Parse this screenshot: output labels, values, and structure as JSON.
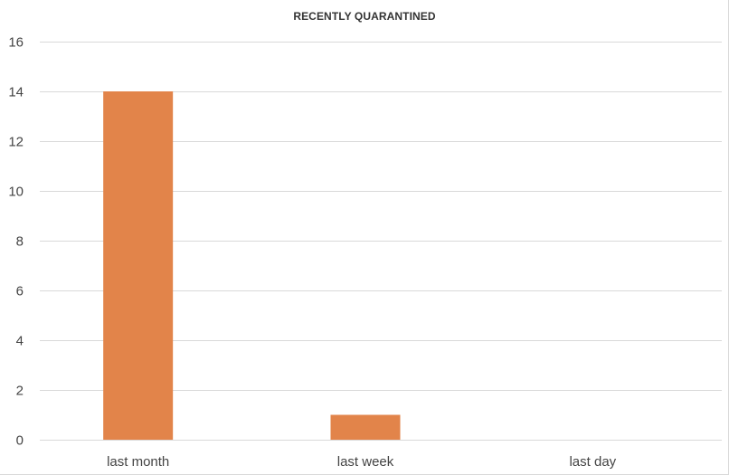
{
  "chart_data": {
    "type": "bar",
    "title": "RECENTLY QUARANTINED",
    "xlabel": "",
    "ylabel": "",
    "categories": [
      "last month",
      "last week",
      "last day"
    ],
    "values": [
      14,
      1,
      0
    ],
    "ylim": [
      0,
      16
    ],
    "yticks": [
      0,
      2,
      4,
      6,
      8,
      10,
      12,
      14,
      16
    ],
    "grid": true,
    "legend": "none",
    "colors": {
      "bar": "#e2844a",
      "grid": "#d9d9d9",
      "text": "#444444"
    }
  }
}
